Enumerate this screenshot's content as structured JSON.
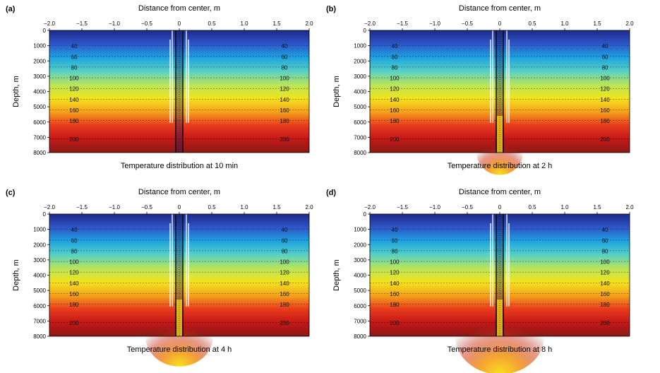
{
  "chart_data": [
    {
      "type": "heatmap",
      "panel_label": "(a)",
      "title": "Temperature distribution at 10 min",
      "xlabel": "Distance from center, m",
      "ylabel": "Depth, m",
      "xlim": [
        -2.0,
        2.0
      ],
      "ylim": [
        0,
        8000
      ],
      "xticks": [
        "−2.0",
        "−1.5",
        "−1.0",
        "−0.5",
        "0",
        "0.5",
        "1.0",
        "1.5",
        "2.0"
      ],
      "yticks": [
        "0",
        "1000",
        "2000",
        "3000",
        "4000",
        "5000",
        "6000",
        "7000",
        "8000"
      ],
      "contour_labels": [
        "40",
        "60",
        "80",
        "100",
        "120",
        "140",
        "160",
        "180",
        "200"
      ],
      "contour_depths": [
        1000,
        1700,
        2400,
        3100,
        3800,
        4500,
        5200,
        5900,
        7100
      ],
      "plume_spread": 0.0
    },
    {
      "type": "heatmap",
      "panel_label": "(b)",
      "title": "Temperature distribution at 2 h",
      "xlabel": "Distance from center, m",
      "ylabel": "Depth, m",
      "xlim": [
        -2.0,
        2.0
      ],
      "ylim": [
        0,
        8000
      ],
      "xticks": [
        "−2.0",
        "−1.5",
        "−1.0",
        "−0.5",
        "0",
        "0.5",
        "1.0",
        "1.5",
        "2.0"
      ],
      "yticks": [
        "0",
        "1000",
        "2000",
        "3000",
        "4000",
        "5000",
        "6000",
        "7000",
        "8000"
      ],
      "contour_labels": [
        "40",
        "60",
        "80",
        "100",
        "120",
        "140",
        "160",
        "180",
        "200"
      ],
      "contour_depths": [
        1000,
        1700,
        2400,
        3100,
        3800,
        4500,
        5200,
        5900,
        7100
      ],
      "plume_spread": 0.3
    },
    {
      "type": "heatmap",
      "panel_label": "(c)",
      "title": "Temperature distribution at 4 h",
      "xlabel": "Distance from center, m",
      "ylabel": "Depth, m",
      "xlim": [
        -2.0,
        2.0
      ],
      "ylim": [
        0,
        8000
      ],
      "xticks": [
        "−2.0",
        "−1.5",
        "−1.0",
        "−0.5",
        "0",
        "0.5",
        "1.0",
        "1.5",
        "2.0"
      ],
      "yticks": [
        "0",
        "1000",
        "2000",
        "3000",
        "4000",
        "5000",
        "6000",
        "7000",
        "8000"
      ],
      "contour_labels": [
        "40",
        "60",
        "80",
        "100",
        "120",
        "140",
        "160",
        "180",
        "200"
      ],
      "contour_depths": [
        1000,
        1700,
        2400,
        3100,
        3800,
        4500,
        5200,
        5900,
        7100
      ],
      "plume_spread": 0.55
    },
    {
      "type": "heatmap",
      "panel_label": "(d)",
      "title": "Temperature distribution at 8 h",
      "xlabel": "Distance from center, m",
      "ylabel": "Depth, m",
      "xlim": [
        -2.0,
        2.0
      ],
      "ylim": [
        0,
        8000
      ],
      "xticks": [
        "−2.0",
        "−1.5",
        "−1.0",
        "−0.5",
        "0",
        "0.5",
        "1.0",
        "1.5",
        "2.0"
      ],
      "yticks": [
        "0",
        "1000",
        "2000",
        "3000",
        "4000",
        "5000",
        "6000",
        "7000",
        "8000"
      ],
      "contour_labels": [
        "40",
        "60",
        "80",
        "100",
        "120",
        "140",
        "160",
        "180",
        "200"
      ],
      "contour_depths": [
        1000,
        1700,
        2400,
        3100,
        3800,
        4500,
        5200,
        5900,
        7100
      ],
      "plume_spread": 0.8
    }
  ],
  "colormap": [
    "#1c2a8c",
    "#2f56c8",
    "#1ea3e0",
    "#56d0c6",
    "#b8e45a",
    "#f2e31c",
    "#f5a21b",
    "#ea3b1c",
    "#c41818",
    "#8a1a14"
  ]
}
